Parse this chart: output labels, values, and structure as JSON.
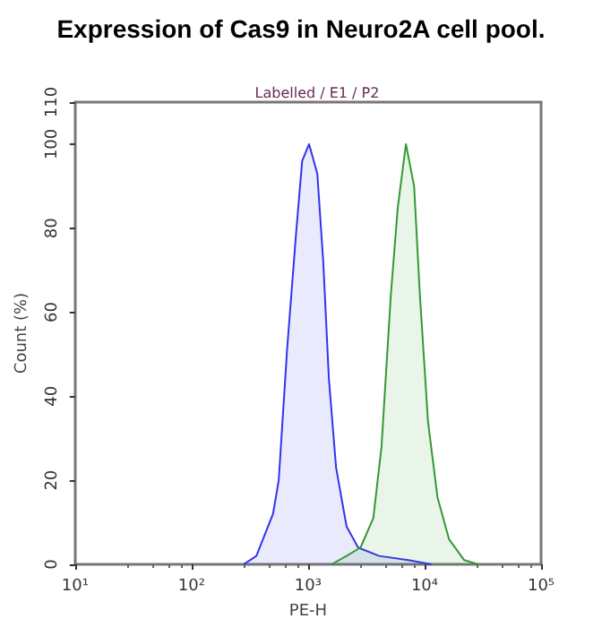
{
  "chart_data": {
    "type": "area",
    "title": "Expression of Cas9 in Neuro2A cell pool.",
    "subtitle": "Labelled / E1 / P2",
    "xlabel": "PE-H",
    "ylabel": "Count (%)",
    "log": "x",
    "xlim": [
      10,
      100000
    ],
    "xticks": [
      {
        "value": 10,
        "label": "10¹"
      },
      {
        "value": 100,
        "label": "10²"
      },
      {
        "value": 1000,
        "label": "10³"
      },
      {
        "value": 10000,
        "label": "10⁴"
      },
      {
        "value": 100000,
        "label": "10⁵"
      }
    ],
    "ylim": [
      0,
      110
    ],
    "yticks": [
      0,
      20,
      40,
      60,
      80,
      100,
      110
    ],
    "grid": false,
    "series": [
      {
        "color": "#3333ee",
        "x": [
          280,
          360,
          500,
          560,
          660,
          790,
          890,
          1020,
          1200,
          1350,
          1510,
          1740,
          2140,
          2690,
          4070,
          7240,
          11500
        ],
        "values": [
          0,
          2,
          12,
          20,
          51,
          79,
          96,
          100,
          93,
          72,
          44,
          23,
          9,
          4,
          2,
          1,
          0
        ]
      },
      {
        "color": "#339933",
        "x": [
          1590,
          2140,
          2820,
          3630,
          4270,
          5130,
          5890,
          6920,
          8130,
          9120,
          10700,
          12900,
          16200,
          21900,
          28800
        ],
        "values": [
          0,
          2,
          4,
          11,
          28,
          64,
          85,
          100,
          90,
          64,
          34,
          16,
          6,
          1,
          0
        ]
      }
    ]
  }
}
